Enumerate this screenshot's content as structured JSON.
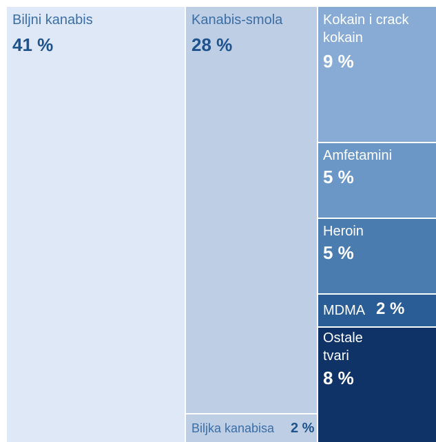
{
  "chart_data": {
    "type": "treemap",
    "unit": "%",
    "items": [
      {
        "label": "Biljni kanabis",
        "value": 41,
        "display": "41 %",
        "color": "#dfe8f6",
        "text_color_label": "#3b6ea5",
        "text_color_value": "#1e528c"
      },
      {
        "label": "Kanabis-smola",
        "value": 28,
        "display": "28 %",
        "color": "#bdcee5",
        "text_color_label": "#3b6ea5",
        "text_color_value": "#1e528c"
      },
      {
        "label": "Biljka kanabisa",
        "value": 2,
        "display": "2 %",
        "color": "#bdcee5",
        "text_color_label": "#3b6ea5",
        "text_color_value": "#1e528c"
      },
      {
        "label": "Kokain i crack\nkokain",
        "value": 9,
        "display": "9 %",
        "color": "#87abd4",
        "text_color_label": "#ffffff",
        "text_color_value": "#ffffff"
      },
      {
        "label": "Amfetamini",
        "value": 5,
        "display": "5 %",
        "color": "#6b97c6",
        "text_color_label": "#ffffff",
        "text_color_value": "#ffffff"
      },
      {
        "label": "Heroin",
        "value": 5,
        "display": "5 %",
        "color": "#4b7cb0",
        "text_color_label": "#ffffff",
        "text_color_value": "#ffffff"
      },
      {
        "label": "MDMA",
        "value": 2,
        "display": "2 %",
        "color": "#2a5d96",
        "text_color_label": "#ffffff",
        "text_color_value": "#ffffff"
      },
      {
        "label": "Ostale\ntvari",
        "value": 8,
        "display": "8 %",
        "color": "#0f3366",
        "text_color_label": "#ffffff",
        "text_color_value": "#ffffff"
      }
    ]
  }
}
